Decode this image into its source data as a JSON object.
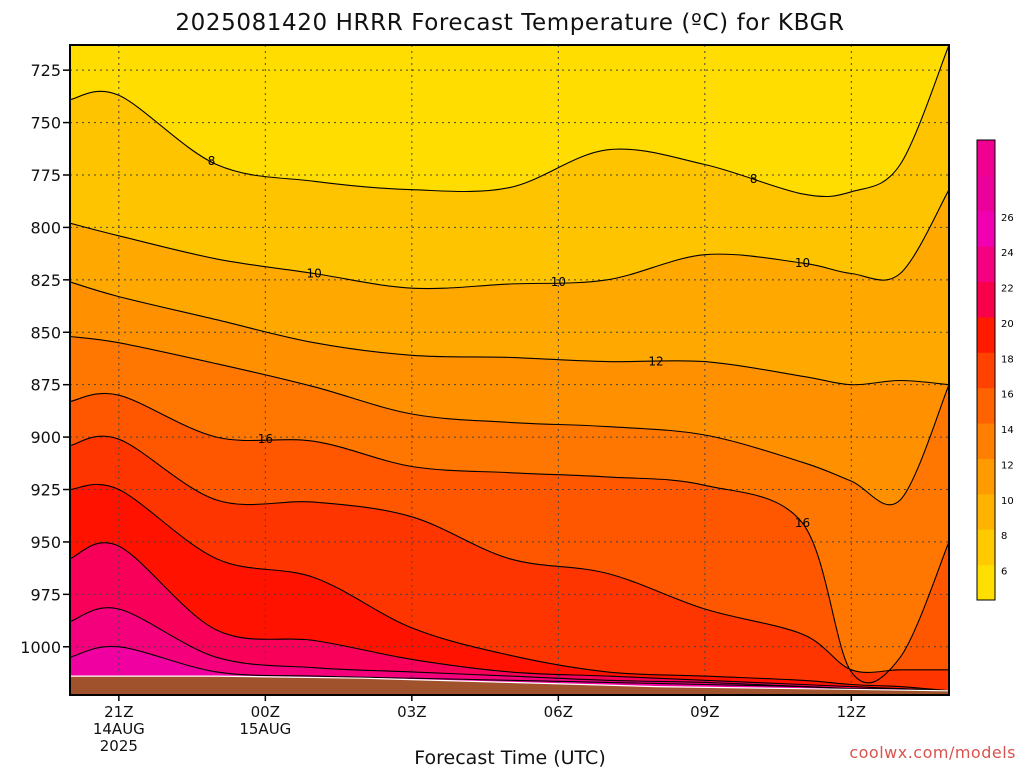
{
  "chart_data": {
    "type": "heatmap",
    "title": "2025081420 HRRR Forecast Temperature (ºC) for KBGR",
    "xlabel": "Forecast Time (UTC)",
    "ylabel": "",
    "credit": "coolwx.com/models",
    "x_ticks": [
      {
        "hour": 0,
        "lines": [
          "21Z",
          "14AUG",
          "2025"
        ]
      },
      {
        "hour": 3,
        "lines": [
          "00Z",
          "15AUG"
        ]
      },
      {
        "hour": 6,
        "lines": [
          "03Z"
        ]
      },
      {
        "hour": 9,
        "lines": [
          "06Z"
        ]
      },
      {
        "hour": 12,
        "lines": [
          "09Z"
        ]
      },
      {
        "hour": 15,
        "lines": [
          "12Z"
        ]
      }
    ],
    "xlim_hours": [
      -1,
      17
    ],
    "y_ticks": [
      725,
      750,
      775,
      800,
      825,
      850,
      875,
      900,
      925,
      950,
      975,
      1000
    ],
    "ylim_hpa": [
      713,
      1023
    ],
    "ground_surface_hpa": [
      1014,
      1014,
      1015,
      1017,
      1019,
      1020,
      1021
    ],
    "ground_surface_hours": [
      -1,
      2,
      5,
      8,
      11,
      14,
      17
    ],
    "contour_levels": [
      6,
      8,
      10,
      12,
      14,
      16,
      18,
      20,
      22,
      24,
      26,
      28
    ],
    "contour_hours": [
      -1,
      0,
      2,
      4,
      6,
      8,
      10,
      12,
      14,
      15,
      16,
      17
    ],
    "contours": [
      {
        "level": 8,
        "pressure": [
          739,
          737,
          770,
          778,
          782,
          781,
          763,
          770,
          784,
          783,
          770,
          713
        ],
        "label": "8",
        "label_hours": [
          1.9,
          13.0
        ]
      },
      {
        "level": 10,
        "pressure": [
          798,
          804,
          815,
          822,
          829,
          827,
          825,
          813,
          817,
          822,
          822,
          782
        ],
        "label": "10",
        "label_hours": [
          4.0,
          9.0,
          14.0
        ]
      },
      {
        "level": 12,
        "pressure": [
          826,
          833,
          844,
          855,
          861,
          862,
          864,
          864,
          871,
          875,
          873,
          875
        ],
        "label": "12",
        "label_hours": [
          11.0
        ]
      },
      {
        "level": 14,
        "pressure": [
          852,
          855,
          865,
          876,
          889,
          893,
          895,
          899,
          912,
          921,
          930,
          875
        ]
      },
      {
        "level": 16,
        "pressure": [
          883,
          880,
          900,
          902,
          914,
          917,
          919,
          923,
          941,
          1012,
          1005,
          950
        ],
        "label": "16",
        "label_hours": [
          3.0,
          14.0
        ]
      },
      {
        "level": 18,
        "pressure": [
          904,
          901,
          930,
          931,
          938,
          958,
          965,
          982,
          994,
          1011,
          1011,
          1011
        ]
      },
      {
        "level": 20,
        "pressure": [
          925,
          925,
          958,
          967,
          991,
          1004,
          1012,
          1014,
          1016,
          1018,
          1019,
          1021
        ]
      },
      {
        "level": 22,
        "pressure": [
          958,
          952,
          992,
          997,
          1006,
          1012,
          1014,
          1016,
          1018,
          1019,
          1020,
          1021
        ]
      },
      {
        "level": 24,
        "pressure": [
          988,
          982,
          1005,
          1010,
          1012,
          1014,
          1016,
          1017,
          1019,
          1020,
          1020,
          1021
        ]
      },
      {
        "level": 26,
        "pressure": [
          1005,
          1000,
          1012,
          1014,
          1015,
          1016,
          1017,
          1018,
          1019,
          1020,
          1021,
          1021
        ]
      }
    ],
    "colorbar": {
      "levels": [
        6,
        8,
        10,
        12,
        14,
        16,
        18,
        20,
        22,
        24,
        26
      ],
      "colors": [
        "#ffdf00",
        "#ffca00",
        "#ffb300",
        "#ff9a00",
        "#ff7f00",
        "#ff6200",
        "#ff4200",
        "#ff1a00",
        "#f8004a",
        "#f50080",
        "#f000b0",
        "#ec009c",
        "#f00090"
      ]
    },
    "fill_colors": [
      "#ffdd00",
      "#ffc400",
      "#ffa800",
      "#ff9000",
      "#ff7600",
      "#ff5600",
      "#ff3500",
      "#ff1200",
      "#f8005a",
      "#f5007c",
      "#f000a0"
    ],
    "ground_color": "#a0522d"
  }
}
